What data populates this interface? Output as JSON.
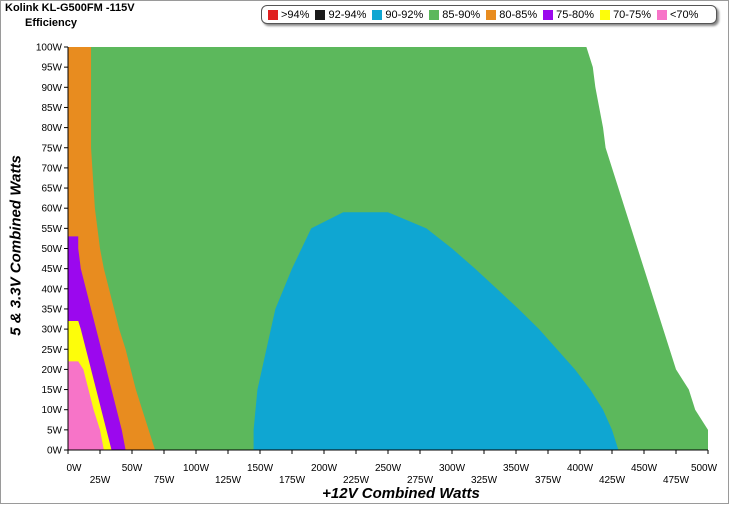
{
  "header": {
    "title": "Kolink KL-G500FM -115V",
    "subtitle": "Efficiency"
  },
  "legend": [
    {
      "label": ">94%",
      "color": "#e02020"
    },
    {
      "label": "92-94%",
      "color": "#1a1a1a"
    },
    {
      "label": "90-92%",
      "color": "#0fa6d2"
    },
    {
      "label": "85-90%",
      "color": "#5cb85c"
    },
    {
      "label": "80-85%",
      "color": "#e88c1f"
    },
    {
      "label": "75-80%",
      "color": "#9b08ee"
    },
    {
      "label": "70-75%",
      "color": "#fdfd0a"
    },
    {
      "label": "<70%",
      "color": "#f774c8"
    }
  ],
  "chart_data": {
    "type": "heatmap",
    "title": "Kolink KL-G500FM -115V",
    "subtitle": "Efficiency",
    "xlabel": "+12V Combined Watts",
    "ylabel": "5 & 3.3V Combined Watts",
    "xlim": [
      0,
      500
    ],
    "ylim": [
      0,
      100
    ],
    "x_ticks": [
      "0W",
      "25W",
      "50W",
      "75W",
      "100W",
      "125W",
      "150W",
      "175W",
      "200W",
      "225W",
      "250W",
      "275W",
      "300W",
      "325W",
      "350W",
      "375W",
      "400W",
      "425W",
      "450W",
      "475W",
      "500W"
    ],
    "y_ticks": [
      "0W",
      "5W",
      "10W",
      "15W",
      "20W",
      "25W",
      "30W",
      "35W",
      "40W",
      "45W",
      "50W",
      "55W",
      "60W",
      "65W",
      "70W",
      "75W",
      "80W",
      "85W",
      "90W",
      "95W",
      "100W"
    ],
    "regions": [
      {
        "band": "85-90%",
        "boundary": [
          [
            0,
            0
          ],
          [
            500,
            0
          ],
          [
            500,
            5
          ],
          [
            490,
            10
          ],
          [
            485,
            15
          ],
          [
            475,
            20
          ],
          [
            470,
            25
          ],
          [
            465,
            30
          ],
          [
            460,
            35
          ],
          [
            455,
            40
          ],
          [
            450,
            45
          ],
          [
            445,
            50
          ],
          [
            440,
            55
          ],
          [
            435,
            60
          ],
          [
            430,
            65
          ],
          [
            425,
            70
          ],
          [
            420,
            75
          ],
          [
            418,
            80
          ],
          [
            415,
            85
          ],
          [
            412,
            90
          ],
          [
            410,
            95
          ],
          [
            405,
            100
          ],
          [
            0,
            100
          ]
        ]
      },
      {
        "band": "80-85%",
        "boundary": [
          [
            0,
            0
          ],
          [
            68,
            0
          ],
          [
            63,
            5
          ],
          [
            58,
            10
          ],
          [
            53,
            15
          ],
          [
            49,
            20
          ],
          [
            45,
            25
          ],
          [
            40,
            30
          ],
          [
            36,
            35
          ],
          [
            32,
            40
          ],
          [
            28,
            45
          ],
          [
            25,
            50
          ],
          [
            23,
            55
          ],
          [
            21,
            60
          ],
          [
            20,
            65
          ],
          [
            19,
            70
          ],
          [
            18,
            75
          ],
          [
            18,
            80
          ],
          [
            18,
            85
          ],
          [
            18,
            90
          ],
          [
            18,
            95
          ],
          [
            18,
            100
          ],
          [
            0,
            100
          ]
        ]
      },
      {
        "band": "75-80%",
        "boundary": [
          [
            0,
            0
          ],
          [
            45,
            0
          ],
          [
            42,
            5
          ],
          [
            38,
            10
          ],
          [
            34,
            15
          ],
          [
            30,
            20
          ],
          [
            26,
            25
          ],
          [
            22,
            30
          ],
          [
            18,
            35
          ],
          [
            14,
            40
          ],
          [
            10,
            45
          ],
          [
            8,
            50
          ],
          [
            8,
            53
          ],
          [
            0,
            53
          ]
        ]
      },
      {
        "band": "70-75%",
        "boundary": [
          [
            0,
            0
          ],
          [
            34,
            0
          ],
          [
            30,
            5
          ],
          [
            26,
            10
          ],
          [
            22,
            15
          ],
          [
            18,
            20
          ],
          [
            14,
            25
          ],
          [
            10,
            30
          ],
          [
            8,
            32
          ],
          [
            0,
            32
          ]
        ]
      },
      {
        "band": "<70%",
        "boundary": [
          [
            0,
            0
          ],
          [
            28,
            0
          ],
          [
            25,
            5
          ],
          [
            20,
            10
          ],
          [
            16,
            15
          ],
          [
            12,
            20
          ],
          [
            8,
            22
          ],
          [
            0,
            22
          ]
        ]
      },
      {
        "band": "90-92%",
        "boundary": [
          [
            145,
            0
          ],
          [
            430,
            0
          ],
          [
            425,
            5
          ],
          [
            418,
            10
          ],
          [
            408,
            15
          ],
          [
            396,
            20
          ],
          [
            382,
            25
          ],
          [
            368,
            30
          ],
          [
            352,
            35
          ],
          [
            335,
            40
          ],
          [
            318,
            45
          ],
          [
            300,
            50
          ],
          [
            280,
            55
          ],
          [
            250,
            59
          ],
          [
            215,
            59
          ],
          [
            190,
            55
          ],
          [
            175,
            45
          ],
          [
            162,
            35
          ],
          [
            155,
            25
          ],
          [
            148,
            15
          ],
          [
            145,
            5
          ]
        ]
      }
    ],
    "grid": false,
    "legend_position": "top-right"
  }
}
